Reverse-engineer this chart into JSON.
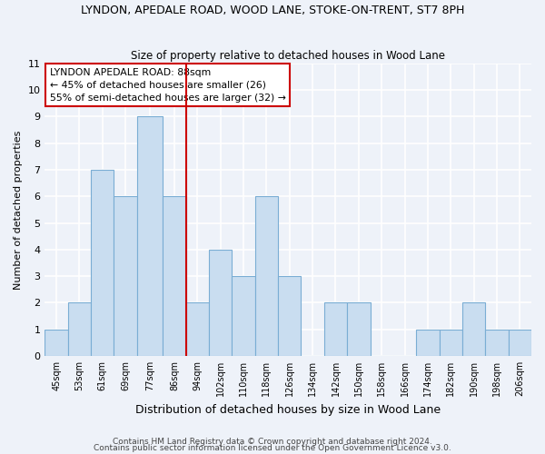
{
  "title": "LYNDON, APEDALE ROAD, WOOD LANE, STOKE-ON-TRENT, ST7 8PH",
  "subtitle": "Size of property relative to detached houses in Wood Lane",
  "xlabel": "Distribution of detached houses by size in Wood Lane",
  "ylabel": "Number of detached properties",
  "bin_edges": [
    41,
    49,
    57,
    65,
    73,
    82,
    90,
    98,
    106,
    114,
    122,
    130,
    138,
    146,
    154,
    162,
    170,
    178,
    186,
    194,
    202,
    210
  ],
  "bin_labels": [
    "45sqm",
    "53sqm",
    "61sqm",
    "69sqm",
    "77sqm",
    "86sqm",
    "94sqm",
    "102sqm",
    "110sqm",
    "118sqm",
    "126sqm",
    "134sqm",
    "142sqm",
    "150sqm",
    "158sqm",
    "166sqm",
    "174sqm",
    "182sqm",
    "190sqm",
    "198sqm",
    "206sqm"
  ],
  "bar_values": [
    1,
    2,
    7,
    6,
    9,
    6,
    2,
    4,
    3,
    6,
    3,
    0,
    2,
    2,
    0,
    0,
    1,
    1,
    2,
    1,
    1
  ],
  "bar_color": "#c9ddf0",
  "bar_edge_color": "#7aadd4",
  "property_line_x": 90,
  "property_line_color": "#cc0000",
  "annotation_title": "LYNDON APEDALE ROAD: 88sqm",
  "annotation_line1": "← 45% of detached houses are smaller (26)",
  "annotation_line2": "55% of semi-detached houses are larger (32) →",
  "ylim": [
    0,
    11
  ],
  "yticks": [
    0,
    1,
    2,
    3,
    4,
    5,
    6,
    7,
    8,
    9,
    10,
    11
  ],
  "footnote1": "Contains HM Land Registry data © Crown copyright and database right 2024.",
  "footnote2": "Contains public sector information licensed under the Open Government Licence v3.0.",
  "bg_color": "#eef2f9",
  "grid_color": "#ffffff"
}
